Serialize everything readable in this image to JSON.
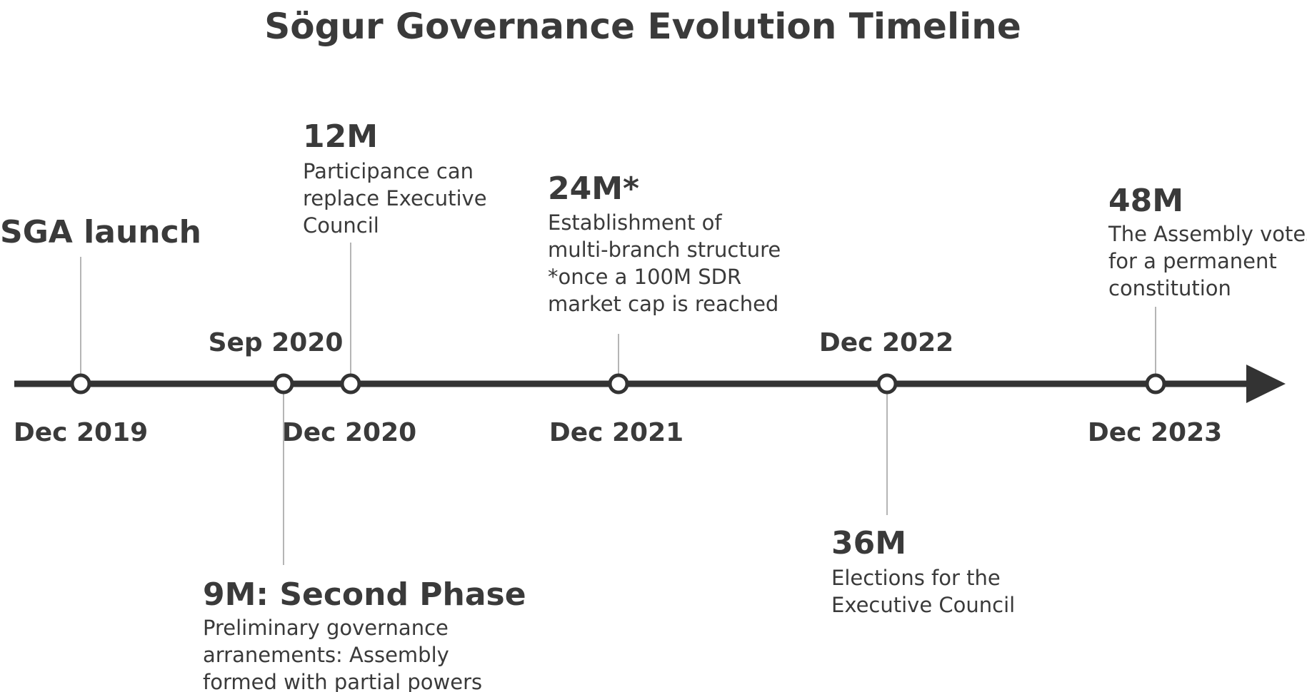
{
  "title": "Sögur Governance Evolution Timeline",
  "colors": {
    "axis": "#333333",
    "connector": "#b5b5b5",
    "text": "#3a3a3a",
    "node_fill": "#ffffff"
  },
  "events": [
    {
      "id": "sga-launch",
      "date": "Dec 2019",
      "heading": "SGA launch",
      "lines": []
    },
    {
      "id": "second-phase",
      "date": "Sep 2020",
      "heading": "9M: Second Phase",
      "lines": [
        "Preliminary governance",
        "arranements: Assembly",
        "formed with partial powers"
      ]
    },
    {
      "id": "12m",
      "date": "Dec 2020",
      "heading": "12M",
      "lines": [
        "Participance can",
        "replace Executive",
        "Council"
      ]
    },
    {
      "id": "24m",
      "date": "Dec 2021",
      "heading": "24M*",
      "lines": [
        "Establishment of",
        "multi-branch structure",
        "*once a 100M SDR",
        "market cap is reached"
      ]
    },
    {
      "id": "36m",
      "date": "Dec 2022",
      "heading": "36M",
      "lines": [
        "Elections for the",
        "Executive Council"
      ]
    },
    {
      "id": "48m",
      "date": "Dec 2023",
      "heading": "48M",
      "lines": [
        "The Assembly votes",
        "for a permanent",
        "constitution"
      ]
    }
  ]
}
